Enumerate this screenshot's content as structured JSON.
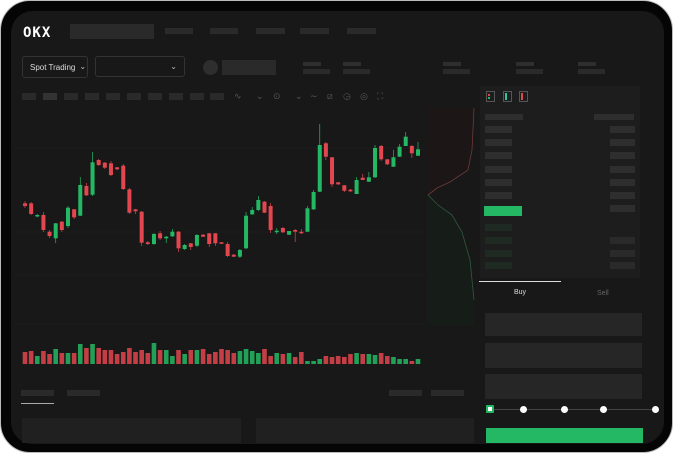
{
  "header": {
    "logo": "OKX",
    "nav_items": [
      "",
      "",
      "",
      "",
      ""
    ]
  },
  "market_bar": {
    "mode_dropdown": "Spot Trading",
    "pair_dropdown": "",
    "chevron": "⌄"
  },
  "order_form": {
    "tabs": [
      "Buy",
      "Sell"
    ],
    "active_tab": "Buy",
    "slider_percent": 0,
    "slider_stops": [
      0,
      25,
      50,
      75,
      100
    ]
  },
  "colors": {
    "up": "#25b864",
    "down": "#e2464e",
    "background": "#181818",
    "accent": "#25b864"
  },
  "icons": [
    "indicator-icon",
    "line-icon",
    "ruler-icon",
    "camera-icon",
    "settings-icon",
    "fullscreen-icon",
    "orderbook-both-icon",
    "orderbook-bids-icon",
    "orderbook-asks-icon",
    "chevron-down-icon"
  ],
  "chart_data": {
    "type": "candlestick",
    "title": "",
    "xlabel": "",
    "ylabel": "",
    "candles": [
      [
        96.7,
        98.7,
        92,
        94
      ],
      [
        96.7,
        98,
        85,
        86
      ],
      [
        83.7,
        86,
        82.7,
        85
      ],
      [
        85,
        88,
        68,
        70
      ],
      [
        68.3,
        70,
        62,
        64
      ],
      [
        61.7,
        77,
        57,
        76.7
      ],
      [
        78.3,
        79,
        68,
        70
      ],
      [
        74,
        94,
        72,
        92.3
      ],
      [
        90.7,
        91,
        81,
        82.7
      ],
      [
        84.3,
        123,
        84,
        115
      ],
      [
        114,
        117,
        104,
        104.7
      ],
      [
        105.3,
        148,
        104,
        137.7
      ],
      [
        140,
        141,
        134,
        135
      ],
      [
        137.3,
        138,
        131,
        132.3
      ],
      [
        136.7,
        139,
        124,
        125
      ],
      [
        132.7,
        133,
        130,
        130.7
      ],
      [
        134.3,
        136,
        110,
        111
      ],
      [
        110.7,
        112,
        86,
        87.3
      ],
      [
        90.7,
        91,
        86,
        88.7
      ],
      [
        88.3,
        89,
        54,
        57.3
      ],
      [
        57.7,
        59,
        55,
        56
      ],
      [
        56,
        67,
        55,
        66
      ],
      [
        66.7,
        69,
        60,
        61.7
      ],
      [
        61.7,
        64,
        57,
        63.3
      ],
      [
        63.7,
        71,
        63,
        68.3
      ],
      [
        68.3,
        69,
        48,
        51.7
      ],
      [
        51,
        56,
        50,
        55
      ],
      [
        56.7,
        57,
        50,
        53
      ],
      [
        54.3,
        66,
        53,
        65
      ],
      [
        65.3,
        66,
        63,
        63.3
      ],
      [
        66.7,
        67,
        53,
        56
      ],
      [
        66.7,
        67,
        54,
        56.7
      ],
      [
        57.7,
        58,
        56,
        56.7
      ],
      [
        56,
        58,
        43,
        44
      ],
      [
        45.3,
        46,
        43,
        43.3
      ],
      [
        43.3,
        51,
        42,
        50
      ],
      [
        51.7,
        88,
        51,
        84.3
      ],
      [
        85.7,
        93,
        85,
        90
      ],
      [
        90,
        104,
        89,
        100
      ],
      [
        98.3,
        99,
        87,
        87.3
      ],
      [
        94,
        97,
        67,
        70
      ],
      [
        68,
        72,
        66,
        69.3
      ],
      [
        72,
        73,
        67,
        67.7
      ],
      [
        65.3,
        69,
        65,
        69
      ],
      [
        70,
        71,
        58,
        68.3
      ],
      [
        68.3,
        71,
        66,
        66.7
      ],
      [
        68.3,
        94,
        68,
        91.7
      ],
      [
        90.7,
        110,
        90,
        108
      ],
      [
        108.3,
        176,
        108,
        155
      ],
      [
        156.7,
        158,
        140,
        143.3
      ],
      [
        142.7,
        143,
        113,
        115.7
      ],
      [
        117.7,
        118,
        115,
        115.7
      ],
      [
        114.7,
        115,
        108,
        109.3
      ],
      [
        110.3,
        111,
        108,
        108.7
      ],
      [
        106,
        123,
        106,
        120
      ],
      [
        122.3,
        126,
        120,
        120
      ],
      [
        118.3,
        128,
        118,
        122.7
      ],
      [
        122.7,
        155,
        122,
        152
      ],
      [
        154,
        155,
        139,
        140.7
      ],
      [
        140.7,
        141,
        135,
        135.7
      ],
      [
        133.3,
        150,
        133,
        142.7
      ],
      [
        143.3,
        156,
        143,
        153.3
      ],
      [
        154,
        168,
        154,
        163.3
      ],
      [
        154,
        155,
        142,
        146.7
      ],
      [
        144.3,
        158,
        144,
        150.7
      ]
    ],
    "volume": [
      12,
      13,
      8,
      13,
      10,
      15,
      11,
      11,
      11,
      20,
      16,
      20,
      16,
      14,
      14,
      10,
      12,
      16,
      12,
      14,
      11,
      21,
      14,
      14,
      8,
      14,
      10,
      14,
      14,
      15,
      10,
      12,
      15,
      14,
      11,
      13,
      15,
      13,
      11,
      15,
      8,
      11,
      10,
      11,
      7,
      12,
      3,
      3,
      5,
      8,
      7,
      8,
      7,
      10,
      11,
      10,
      10,
      9,
      11,
      8,
      7,
      5,
      5,
      3,
      5
    ]
  }
}
